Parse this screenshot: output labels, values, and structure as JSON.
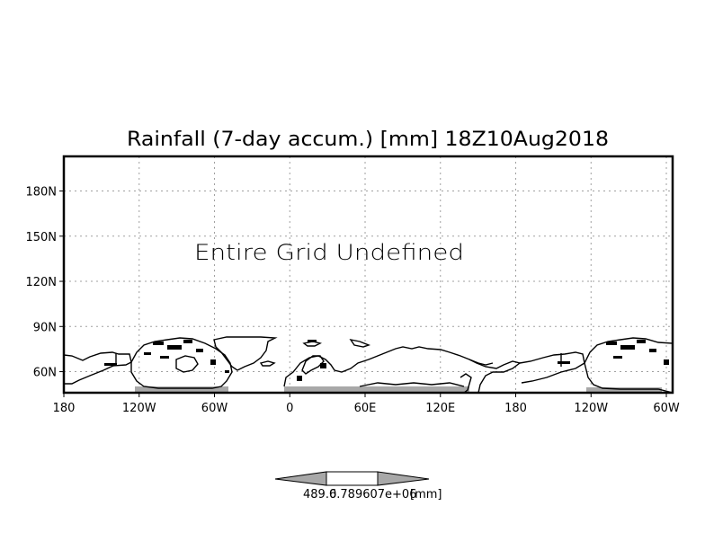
{
  "chart_data": {
    "type": "heatmap",
    "title": "Rainfall (7-day accum.) [mm] 18Z10Aug2018",
    "annotation": "Entire Grid Undefined",
    "xlabel": "",
    "ylabel": "",
    "x_ticks": [
      "180",
      "120W",
      "60W",
      "0",
      "60E",
      "120E",
      "180",
      "120W",
      "60W"
    ],
    "x_tick_values": [
      -180,
      -120,
      -60,
      0,
      60,
      120,
      180,
      240,
      300
    ],
    "y_ticks": [
      "60N",
      "90N",
      "120N",
      "150N",
      "180N"
    ],
    "y_tick_values": [
      60,
      90,
      120,
      150,
      180
    ],
    "xlim": [
      -180,
      305
    ],
    "ylim": [
      46,
      203
    ],
    "grid": true,
    "values": "undefined",
    "undefined_band_lat": [
      46,
      50
    ],
    "colorbar": {
      "labels": [
        "489.6",
        "0.789607e+06"
      ],
      "units": "[mm]",
      "fill_color": "#ffffff",
      "end_color": "#a8a8a8"
    },
    "colors": {
      "frame": "#000000",
      "grid": "#a0a0a0",
      "land_shading": "#a8a8a8"
    }
  }
}
